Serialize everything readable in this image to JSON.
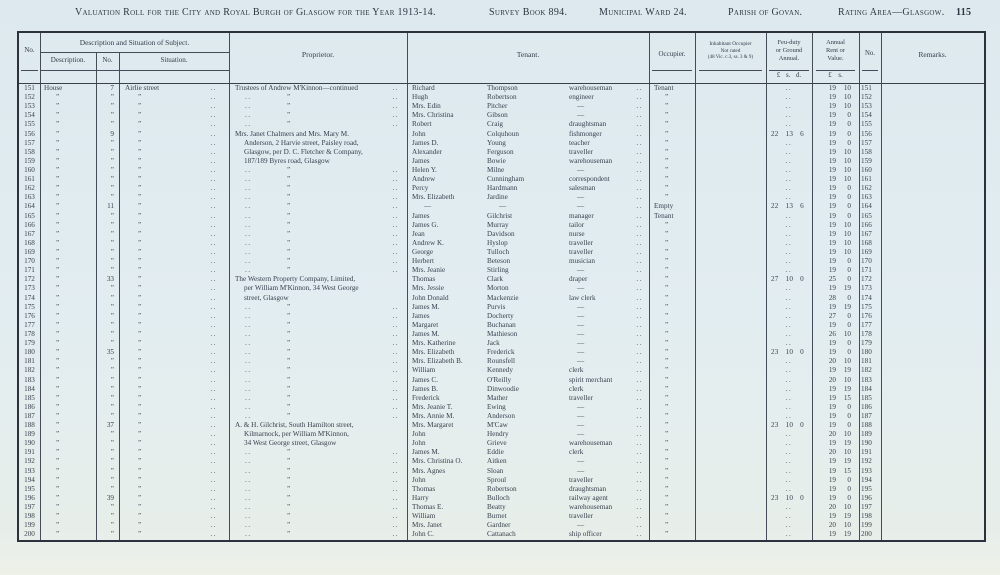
{
  "colors": {
    "paper": "#e2edf1",
    "ink": "#39414e",
    "line": "#454b57"
  },
  "header": {
    "title": "Valuation Roll for the City and Royal Burgh of Glasgow for the Year 1913-14.",
    "survey": "Survey Book 894.",
    "ward": "Municipal Ward 24.",
    "parish": "Parish of Govan.",
    "rating": "Rating Area—Glasgow.",
    "page_number": "115"
  },
  "table": {
    "marks": {
      "dots": "..",
      "ditto": "”",
      "dash": "—"
    },
    "head": {
      "no": "No.",
      "group": "Description and Situation of Subject.",
      "description": "Description.",
      "sub_no": "No.",
      "situation": "Situation.",
      "proprietor": "Proprietor.",
      "tenant": "Tenant.",
      "occupier": "Occupier.",
      "inhabitant_l1": "Inhabitant Occupier",
      "inhabitant_l2": "Not rated",
      "inhabitant_l3": "(48 Vic. c.3, ss. 3 & 9)",
      "feu_l1": "Feu-duty",
      "feu_l2": "or Ground",
      "feu_l3": "Annual.",
      "feu_units": "£ s. d.",
      "rent_l1": "Annual",
      "rent_l2": "Rent or",
      "rent_l3": "Value.",
      "rent_units": "£ s.",
      "no2": "No.",
      "remarks": "Remarks."
    },
    "rows": [
      {
        "n": "151",
        "d": "House",
        "s": "7",
        "st": "Airlie street",
        "pk": "f",
        "pt": "Trustees of Andrew M'Kinnon—continued",
        "pd": true,
        "t1": "Richard",
        "t2": "Thompson",
        "t3": "warehouseman",
        "o": "Tenant",
        "f": "",
        "rl": "19",
        "rs": "10"
      },
      {
        "n": "152",
        "d": "”",
        "s": "”",
        "st": "”",
        "pk": "d",
        "pt": "",
        "t1": "Hugh",
        "t2": "Robertson",
        "t3": "engineer",
        "o": "”",
        "f": "",
        "rl": "19",
        "rs": "10"
      },
      {
        "n": "153",
        "d": "”",
        "s": "”",
        "st": "”",
        "pk": "d",
        "pt": "",
        "t1": "Mrs. Edin",
        "t2": "Pitcher",
        "t3": "—",
        "o": "”",
        "f": "",
        "rl": "19",
        "rs": "10"
      },
      {
        "n": "154",
        "d": "”",
        "s": "”",
        "st": "”",
        "pk": "d",
        "pt": "",
        "t1": "Mrs. Christina",
        "t2": "Gibson",
        "t3": "—",
        "o": "”",
        "f": "",
        "rl": "19",
        "rs": "0"
      },
      {
        "n": "155",
        "d": "”",
        "s": "”",
        "st": "”",
        "pk": "d",
        "pt": "",
        "t1": "Robert",
        "t2": "Craig",
        "t3": "draughtsman",
        "o": "”",
        "f": "",
        "rl": "19",
        "rs": "0"
      },
      {
        "n": "156",
        "d": "”",
        "s": "9",
        "st": "”",
        "pk": "f",
        "pt": "Mrs. Janet Chalmers and Mrs. Mary M.",
        "t1": "John",
        "t2": "Colquhoun",
        "t3": "fishmonger",
        "o": "”",
        "f": "22 13 6",
        "rl": "19",
        "rs": "0"
      },
      {
        "n": "157",
        "d": "”",
        "s": "”",
        "st": "”",
        "pk": "c",
        "pt": "Anderson, 2 Harvie street, Paisley road,",
        "t1": "James D.",
        "t2": "Young",
        "t3": "teacher",
        "o": "”",
        "f": "",
        "rl": "19",
        "rs": "0"
      },
      {
        "n": "158",
        "d": "”",
        "s": "”",
        "st": "”",
        "pk": "c",
        "pt": "Glasgow, per D. C. Fletcher & Company,",
        "t1": "Alexander",
        "t2": "Ferguson",
        "t3": "traveller",
        "o": "”",
        "f": "",
        "rl": "19",
        "rs": "10"
      },
      {
        "n": "159",
        "d": "”",
        "s": "”",
        "st": "”",
        "pk": "c",
        "pt": "187/189 Byres road, Glasgow",
        "t1": "James",
        "t2": "Bowie",
        "t3": "warehouseman",
        "o": "”",
        "f": "",
        "rl": "19",
        "rs": "10"
      },
      {
        "n": "160",
        "d": "”",
        "s": "”",
        "st": "”",
        "pk": "d",
        "pt": "",
        "t1": "Helen Y.",
        "t2": "Milne",
        "t3": "—",
        "o": "”",
        "f": "",
        "rl": "19",
        "rs": "10"
      },
      {
        "n": "161",
        "d": "”",
        "s": "”",
        "st": "”",
        "pk": "d",
        "pt": "",
        "t1": "Andrew",
        "t2": "Cunningham",
        "t3": "correspondent",
        "o": "”",
        "f": "",
        "rl": "19",
        "rs": "10"
      },
      {
        "n": "162",
        "d": "”",
        "s": "”",
        "st": "”",
        "pk": "d",
        "pt": "",
        "t1": "Percy",
        "t2": "Hardmann",
        "t3": "salesman",
        "o": "”",
        "f": "",
        "rl": "19",
        "rs": "0"
      },
      {
        "n": "163",
        "d": "”",
        "s": "”",
        "st": "”",
        "pk": "d",
        "pt": "",
        "t1": "Mrs. Elizabeth",
        "t2": "Jardine",
        "t3": "—",
        "o": "”",
        "f": "",
        "rl": "19",
        "rs": "0"
      },
      {
        "n": "164",
        "d": "”",
        "s": "11",
        "st": "”",
        "pk": "d",
        "pt": "",
        "t1": "—",
        "t2": "—",
        "t3": "—",
        "o": "Empty",
        "f": "22 13 6",
        "rl": "19",
        "rs": "0"
      },
      {
        "n": "165",
        "d": "”",
        "s": "”",
        "st": "”",
        "pk": "d",
        "pt": "",
        "t1": "James",
        "t2": "Gilchrist",
        "t3": "manager",
        "o": "Tenant",
        "f": "",
        "rl": "19",
        "rs": "0"
      },
      {
        "n": "166",
        "d": "”",
        "s": "”",
        "st": "”",
        "pk": "d",
        "pt": "",
        "t1": "James G.",
        "t2": "Murray",
        "t3": "tailor",
        "o": "”",
        "f": "",
        "rl": "19",
        "rs": "10"
      },
      {
        "n": "167",
        "d": "”",
        "s": "”",
        "st": "”",
        "pk": "d",
        "pt": "",
        "t1": "Jean",
        "t2": "Davidson",
        "t3": "nurse",
        "o": "”",
        "f": "",
        "rl": "19",
        "rs": "10"
      },
      {
        "n": "168",
        "d": "”",
        "s": "”",
        "st": "”",
        "pk": "d",
        "pt": "",
        "t1": "Andrew K.",
        "t2": "Hyslop",
        "t3": "traveller",
        "o": "”",
        "f": "",
        "rl": "19",
        "rs": "10"
      },
      {
        "n": "169",
        "d": "”",
        "s": "”",
        "st": "”",
        "pk": "d",
        "pt": "",
        "t1": "George",
        "t2": "Tulloch",
        "t3": "traveller",
        "o": "”",
        "f": "",
        "rl": "19",
        "rs": "10"
      },
      {
        "n": "170",
        "d": "”",
        "s": "”",
        "st": "”",
        "pk": "d",
        "pt": "",
        "t1": "Herbert",
        "t2": "Beteson",
        "t3": "musician",
        "o": "”",
        "f": "",
        "rl": "19",
        "rs": "0"
      },
      {
        "n": "171",
        "d": "”",
        "s": "”",
        "st": "”",
        "pk": "d",
        "pt": "",
        "t1": "Mrs. Jeanie",
        "t2": "Stirling",
        "t3": "—",
        "o": "”",
        "f": "",
        "rl": "19",
        "rs": "0"
      },
      {
        "n": "172",
        "d": "”",
        "s": "33",
        "st": "”",
        "pk": "f",
        "pt": "The Western Property Company, Limited,",
        "t1": "Thomas",
        "t2": "Clark",
        "t3": "draper",
        "o": "”",
        "f": "27 10 0",
        "rl": "25",
        "rs": "0"
      },
      {
        "n": "173",
        "d": "”",
        "s": "”",
        "st": "”",
        "pk": "c",
        "pt": "per William M'Kinnon, 34 West George",
        "t1": "Mrs. Jessie",
        "t2": "Morton",
        "t3": "—",
        "o": "”",
        "f": "",
        "rl": "19",
        "rs": "19"
      },
      {
        "n": "174",
        "d": "”",
        "s": "”",
        "st": "”",
        "pk": "c",
        "pt": "street, Glasgow",
        "t1": "John Donald",
        "t2": "Mackenzie",
        "t3": "law clerk",
        "o": "”",
        "f": "",
        "rl": "28",
        "rs": "0"
      },
      {
        "n": "175",
        "d": "”",
        "s": "”",
        "st": "”",
        "pk": "d",
        "pt": "",
        "t1": "James M.",
        "t2": "Purvis",
        "t3": "—",
        "o": "”",
        "f": "",
        "rl": "19",
        "rs": "19"
      },
      {
        "n": "176",
        "d": "”",
        "s": "”",
        "st": "”",
        "pk": "d",
        "pt": "",
        "t1": "James",
        "t2": "Docherty",
        "t3": "—",
        "o": "”",
        "f": "",
        "rl": "27",
        "rs": "0"
      },
      {
        "n": "177",
        "d": "”",
        "s": "”",
        "st": "”",
        "pk": "d",
        "pt": "",
        "t1": "Margaret",
        "t2": "Buchanan",
        "t3": "—",
        "o": "”",
        "f": "",
        "rl": "19",
        "rs": "0"
      },
      {
        "n": "178",
        "d": "”",
        "s": "”",
        "st": "”",
        "pk": "d",
        "pt": "",
        "t1": "James M.",
        "t2": "Mathieson",
        "t3": "—",
        "o": "”",
        "f": "",
        "rl": "26",
        "rs": "10"
      },
      {
        "n": "179",
        "d": "”",
        "s": "”",
        "st": "”",
        "pk": "d",
        "pt": "",
        "t1": "Mrs. Katherine",
        "t2": "Jack",
        "t3": "—",
        "o": "”",
        "f": "",
        "rl": "19",
        "rs": "0"
      },
      {
        "n": "180",
        "d": "”",
        "s": "35",
        "st": "”",
        "pk": "d",
        "pt": "",
        "t1": "Mrs. Elizabeth",
        "t2": "Frederick",
        "t3": "—",
        "o": "”",
        "f": "23 10 0",
        "rl": "19",
        "rs": "0"
      },
      {
        "n": "181",
        "d": "”",
        "s": "”",
        "st": "”",
        "pk": "d",
        "pt": "",
        "t1": "Mrs. Elizabeth B.",
        "t2": "Rounsfell",
        "t3": "—",
        "o": "”",
        "f": "",
        "rl": "20",
        "rs": "10"
      },
      {
        "n": "182",
        "d": "”",
        "s": "”",
        "st": "”",
        "pk": "d",
        "pt": "",
        "t1": "William",
        "t2": "Kennedy",
        "t3": "clerk",
        "o": "”",
        "f": "",
        "rl": "19",
        "rs": "19"
      },
      {
        "n": "183",
        "d": "”",
        "s": "”",
        "st": "”",
        "pk": "d",
        "pt": "",
        "t1": "James C.",
        "t2": "O'Reilly",
        "t3": "spirit merchant",
        "o": "”",
        "f": "",
        "rl": "20",
        "rs": "10"
      },
      {
        "n": "184",
        "d": "”",
        "s": "”",
        "st": "”",
        "pk": "d",
        "pt": "",
        "t1": "James B.",
        "t2": "Dinwoodie",
        "t3": "clerk",
        "o": "”",
        "f": "",
        "rl": "19",
        "rs": "19"
      },
      {
        "n": "185",
        "d": "”",
        "s": "”",
        "st": "”",
        "pk": "d",
        "pt": "",
        "t1": "Frederick",
        "t2": "Mather",
        "t3": "traveller",
        "o": "”",
        "f": "",
        "rl": "19",
        "rs": "15"
      },
      {
        "n": "186",
        "d": "”",
        "s": "”",
        "st": "”",
        "pk": "d",
        "pt": "",
        "t1": "Mrs. Jeanie T.",
        "t2": "Ewing",
        "t3": "—",
        "o": "”",
        "f": "",
        "rl": "19",
        "rs": "0"
      },
      {
        "n": "187",
        "d": "”",
        "s": "”",
        "st": "”",
        "pk": "d",
        "pt": "",
        "t1": "Mrs. Annie M.",
        "t2": "Anderson",
        "t3": "—",
        "o": "”",
        "f": "",
        "rl": "19",
        "rs": "0"
      },
      {
        "n": "188",
        "d": "”",
        "s": "37",
        "st": "”",
        "pk": "f",
        "pt": "A. & H. Gilchrist, South Hamilton street,",
        "t1": "Mrs. Margaret",
        "t2": "M'Caw",
        "t3": "—",
        "o": "”",
        "f": "23 10 0",
        "rl": "19",
        "rs": "0"
      },
      {
        "n": "189",
        "d": "”",
        "s": "”",
        "st": "”",
        "pk": "c",
        "pt": "Kilmarnock, per William M'Kinnon,",
        "t1": "John",
        "t2": "Hendry",
        "t3": "—",
        "o": "”",
        "f": "",
        "rl": "20",
        "rs": "10"
      },
      {
        "n": "190",
        "d": "”",
        "s": "”",
        "st": "”",
        "pk": "c",
        "pt": "34 West George street, Glasgow",
        "t1": "John",
        "t2": "Grieve",
        "t3": "warehouseman",
        "o": "”",
        "f": "",
        "rl": "19",
        "rs": "19"
      },
      {
        "n": "191",
        "d": "”",
        "s": "”",
        "st": "”",
        "pk": "d",
        "pt": "",
        "t1": "James M.",
        "t2": "Eddie",
        "t3": "clerk",
        "o": "”",
        "f": "",
        "rl": "20",
        "rs": "10"
      },
      {
        "n": "192",
        "d": "”",
        "s": "”",
        "st": "”",
        "pk": "d",
        "pt": "",
        "t1": "Mrs. Christina O.",
        "t2": "Aitken",
        "t3": "—",
        "o": "”",
        "f": "",
        "rl": "19",
        "rs": "19"
      },
      {
        "n": "193",
        "d": "”",
        "s": "”",
        "st": "”",
        "pk": "d",
        "pt": "",
        "t1": "Mrs. Agnes",
        "t2": "Sloan",
        "t3": "—",
        "o": "”",
        "f": "",
        "rl": "19",
        "rs": "15"
      },
      {
        "n": "194",
        "d": "”",
        "s": "”",
        "st": "”",
        "pk": "d",
        "pt": "",
        "t1": "John",
        "t2": "Sproul",
        "t3": "traveller",
        "o": "”",
        "f": "",
        "rl": "19",
        "rs": "0"
      },
      {
        "n": "195",
        "d": "”",
        "s": "”",
        "st": "”",
        "pk": "d",
        "pt": "",
        "t1": "Thomas",
        "t2": "Robertson",
        "t3": "draughtsman",
        "o": "”",
        "f": "",
        "rl": "19",
        "rs": "0"
      },
      {
        "n": "196",
        "d": "”",
        "s": "39",
        "st": "”",
        "pk": "d",
        "pt": "",
        "t1": "Harry",
        "t2": "Bulloch",
        "t3": "railway agent",
        "o": "”",
        "f": "23 10 0",
        "rl": "19",
        "rs": "0"
      },
      {
        "n": "197",
        "d": "”",
        "s": "”",
        "st": "”",
        "pk": "d",
        "pt": "",
        "t1": "Thomas E.",
        "t2": "Beatty",
        "t3": "warehouseman",
        "o": "”",
        "f": "",
        "rl": "20",
        "rs": "10"
      },
      {
        "n": "198",
        "d": "”",
        "s": "”",
        "st": "”",
        "pk": "d",
        "pt": "",
        "t1": "William",
        "t2": "Burnet",
        "t3": "traveller",
        "o": "”",
        "f": "",
        "rl": "19",
        "rs": "19"
      },
      {
        "n": "199",
        "d": "”",
        "s": "”",
        "st": "”",
        "pk": "d",
        "pt": "",
        "t1": "Mrs. Janet",
        "t2": "Gardner",
        "t3": "—",
        "o": "”",
        "f": "",
        "rl": "20",
        "rs": "10"
      },
      {
        "n": "200",
        "d": "”",
        "s": "”",
        "st": "”",
        "pk": "d",
        "pt": "",
        "t1": "John C.",
        "t2": "Cattanach",
        "t3": "ship officer",
        "o": "”",
        "f": "",
        "rl": "19",
        "rs": "19"
      }
    ]
  }
}
